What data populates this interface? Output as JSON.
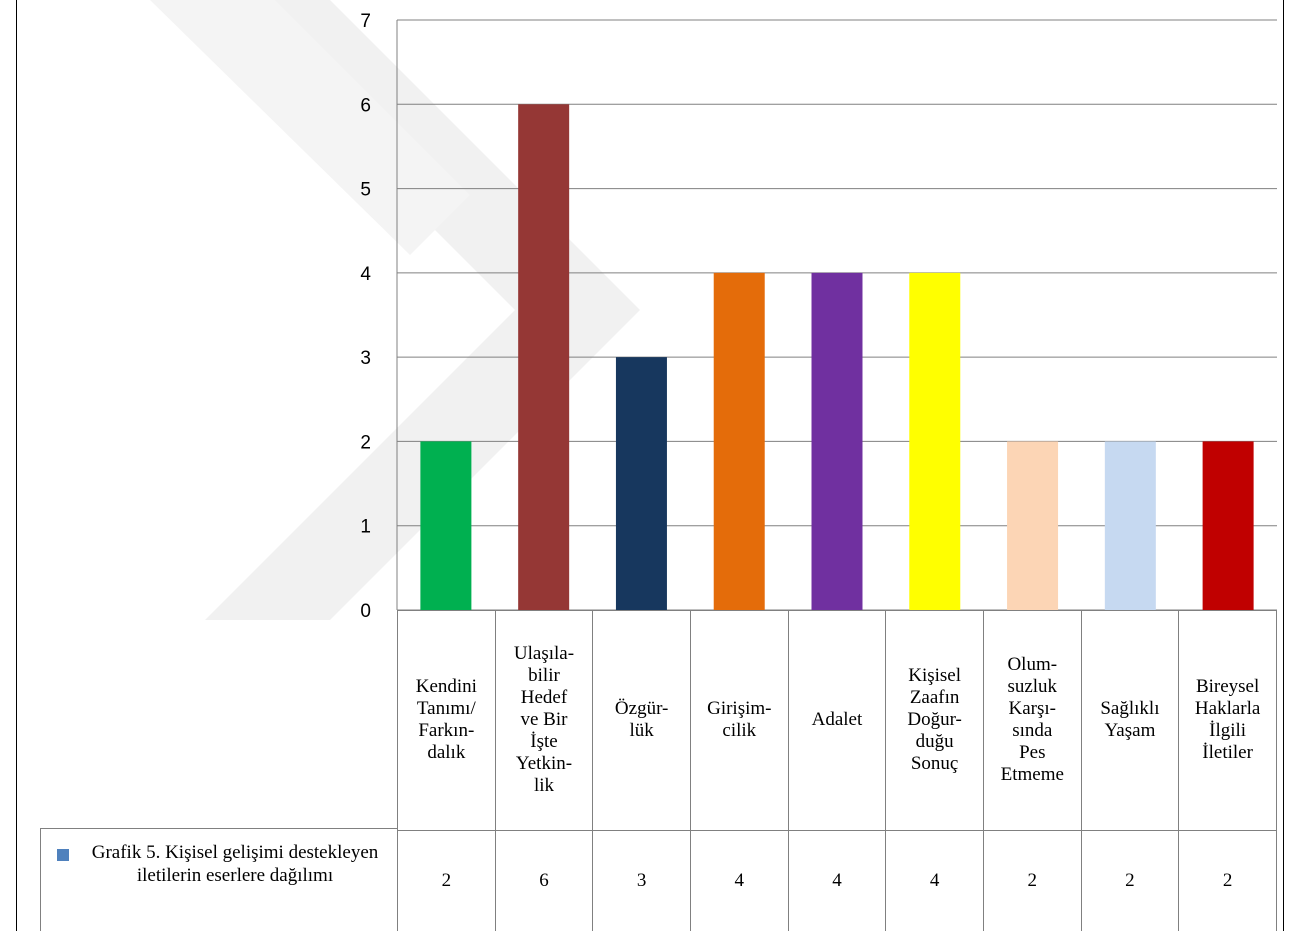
{
  "chart_data": {
    "type": "bar",
    "title": "",
    "xlabel": "",
    "ylabel": "",
    "ylim": [
      0,
      7
    ],
    "yticks": [
      0,
      1,
      2,
      3,
      4,
      5,
      6,
      7
    ],
    "grid": true,
    "categories": [
      "Kendini Tanımı/ Farkın- dalık",
      "Ulaşıla- bilir Hedef ve Bir İşte Yetkin- lik",
      "Özgür- lük",
      "Girişim- cilik",
      "Adalet",
      "Kişisel Zaafın Doğur- duğu Sonuç",
      "Olum- suzluk Karşı- sında Pes Etmeme",
      "Sağlıklı Yaşam",
      "Bireysel Haklarla İlgili İletiler"
    ],
    "category_lines": [
      [
        "Kendini",
        "Tanımı/",
        "Farkın-",
        "dalık"
      ],
      [
        "Ulaşıla-",
        "bilir",
        "Hedef",
        "ve Bir",
        "İşte",
        "Yetkin-",
        "lik"
      ],
      [
        "Özgür-",
        "lük"
      ],
      [
        "Girişim-",
        "cilik"
      ],
      [
        "Adalet"
      ],
      [
        "Kişisel",
        "Zaafın",
        "Doğur-",
        "duğu",
        "Sonuç"
      ],
      [
        "Olum-",
        "suzluk",
        "Karşı-",
        "sında",
        "Pes",
        "Etmeme"
      ],
      [
        "Sağlıklı",
        "Yaşam"
      ],
      [
        "Bireysel",
        "Haklarla",
        "İlgili",
        "İletiler"
      ]
    ],
    "series": [
      {
        "name": "Grafik 5.  Kişisel gelişimi destekleyen iletilerin eserlere dağılımı",
        "values": [
          2,
          6,
          3,
          4,
          4,
          4,
          2,
          2,
          2
        ]
      }
    ],
    "value_labels": [
      "2",
      "6",
      "3",
      "4",
      "4",
      "4",
      "2",
      "2",
      "2"
    ],
    "bar_colors": [
      "#00b050",
      "#953735",
      "#17375e",
      "#e46c0a",
      "#7030a0",
      "#ffff00",
      "#fcd5b5",
      "#c6d9f1",
      "#c00000"
    ],
    "legend_swatch_color": "#4f81bd",
    "legend_position": "bottom-left-data-table"
  }
}
